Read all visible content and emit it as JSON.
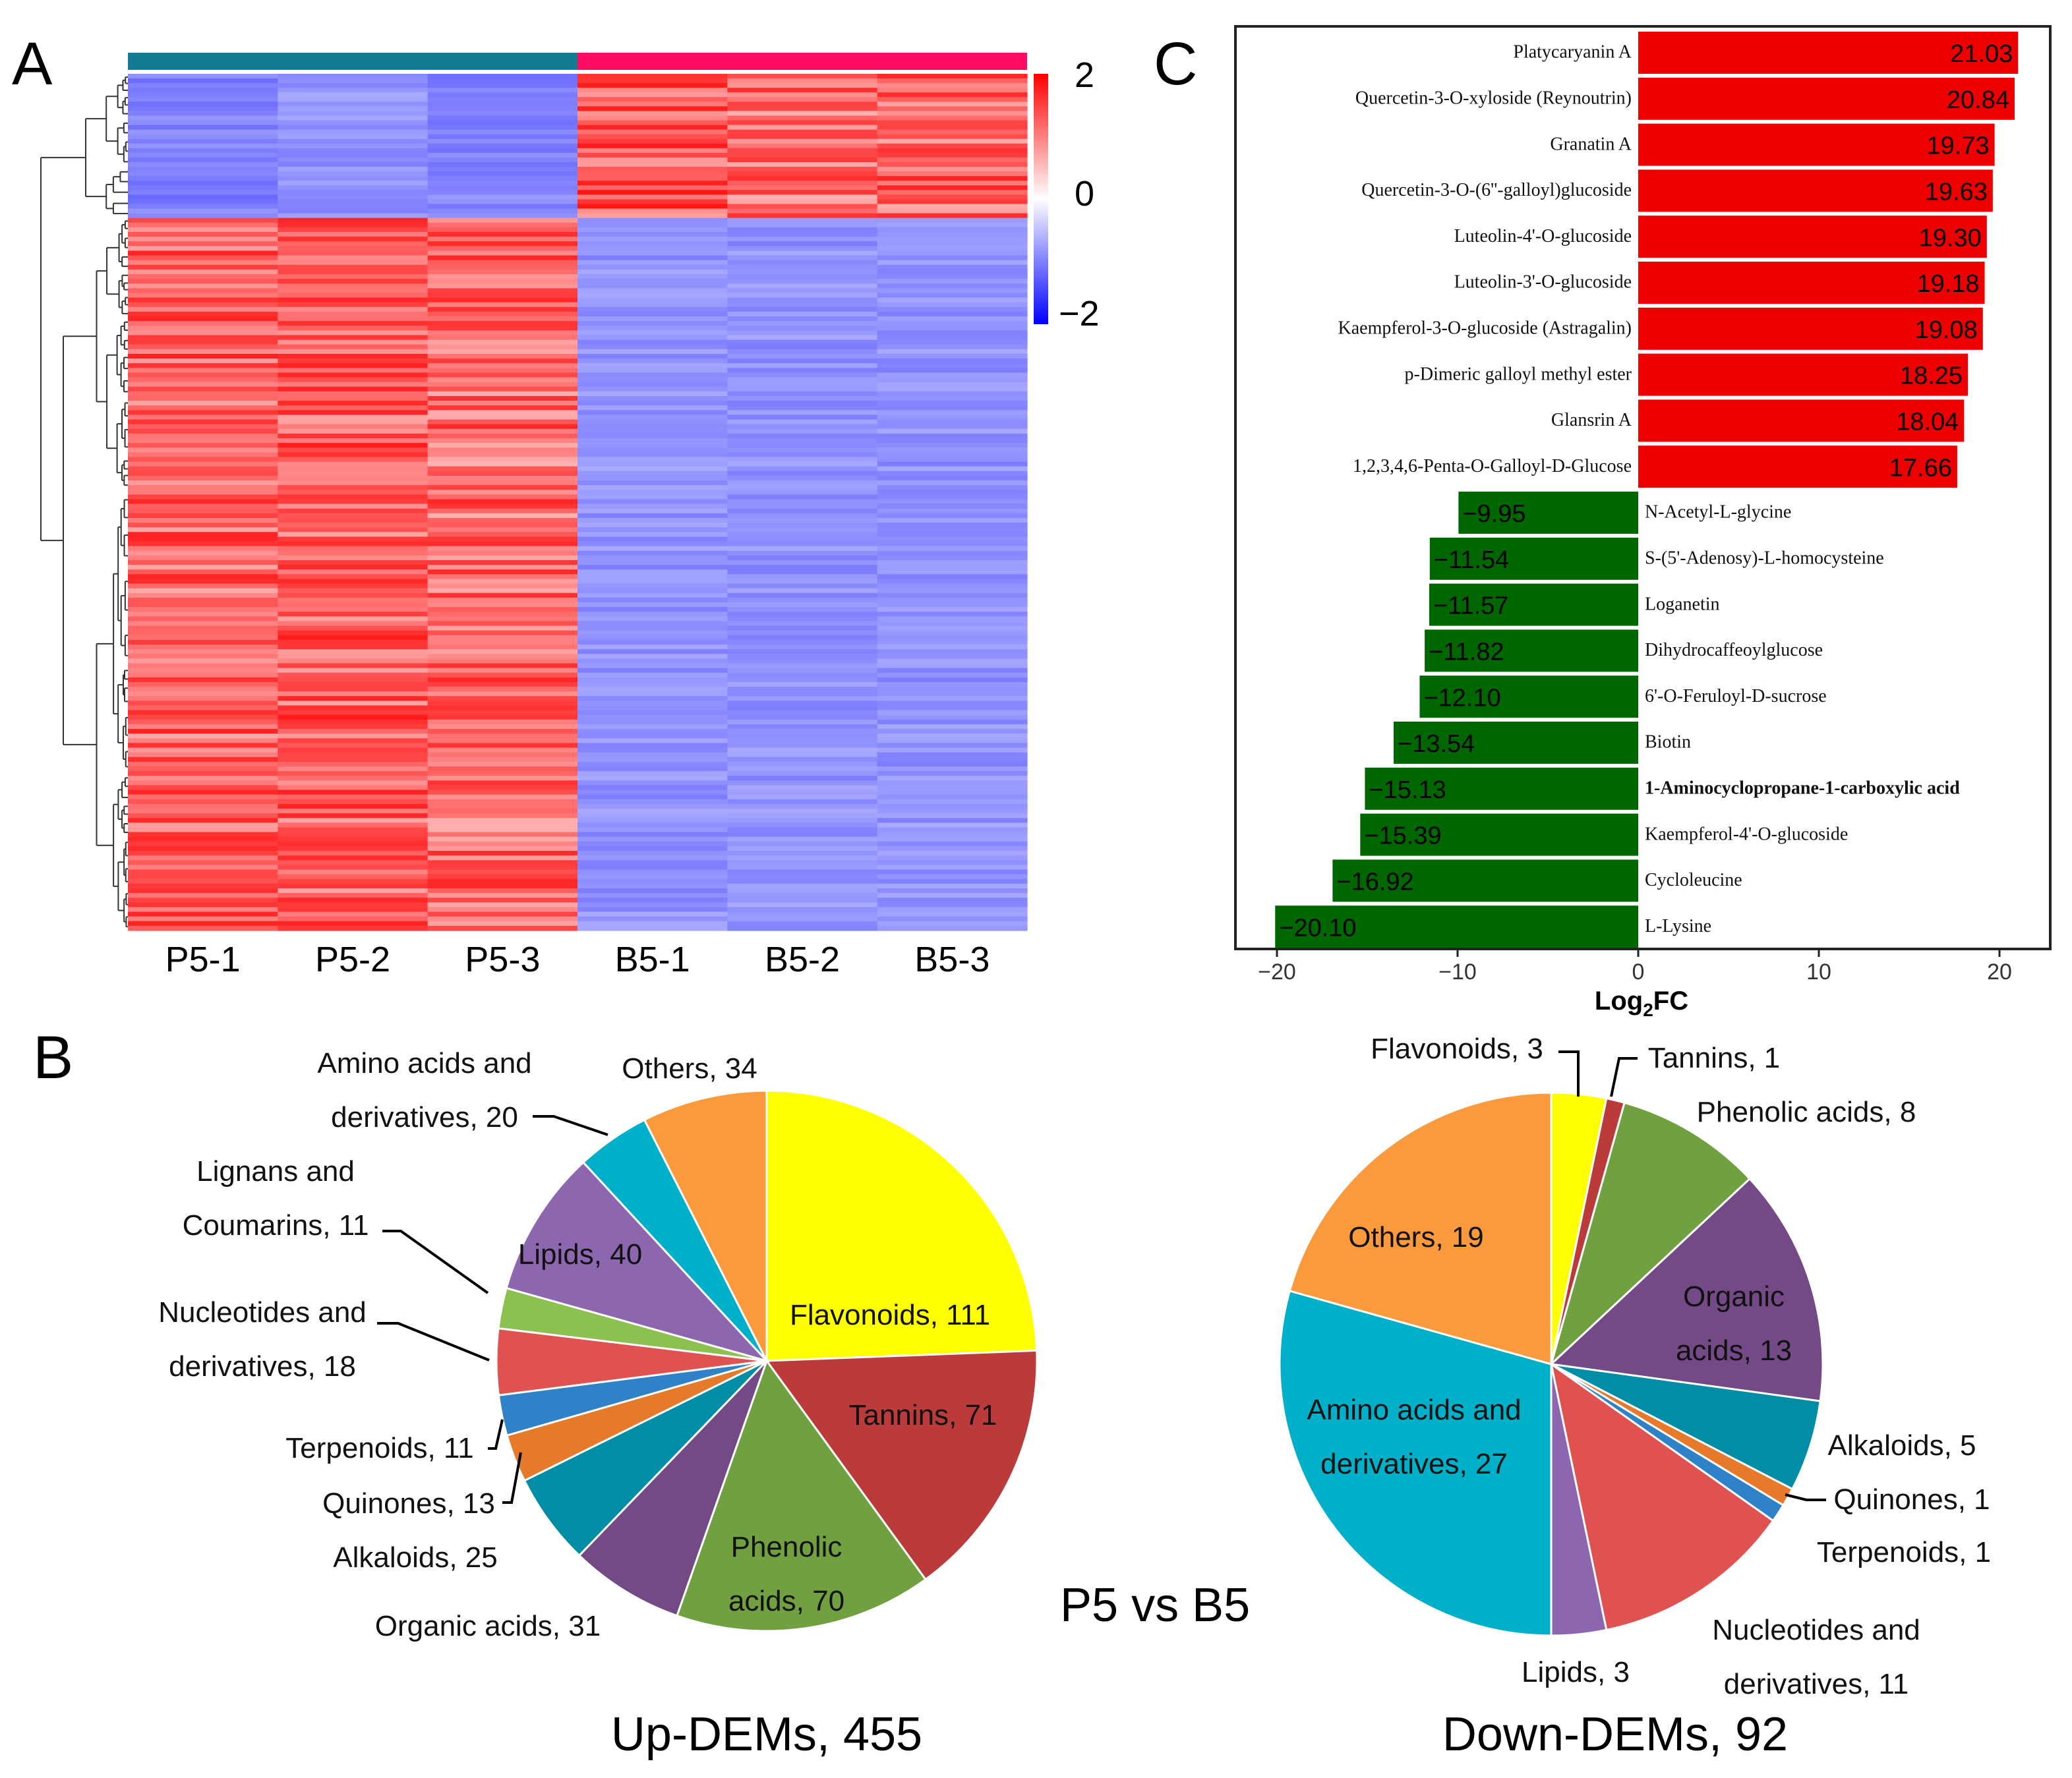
{
  "panels": {
    "a": "A",
    "b": "B",
    "c": "C"
  },
  "chart_data": [
    {
      "type": "heatmap",
      "panel": "A",
      "columns": [
        "P5-1",
        "P5-2",
        "P5-3",
        "B5-1",
        "B5-2",
        "B5-3"
      ],
      "group_colors": [
        "#157a94",
        "#ff0a62"
      ],
      "colorscale": {
        "min": -2,
        "mid": 0,
        "max": 2,
        "ticks": [
          "2",
          "0",
          "−2"
        ],
        "colors": [
          "#0000ff",
          "#ffffff",
          "#ff0000"
        ]
      },
      "row_clusters": [
        {
          "name": "up-in-B5",
          "rows": 92,
          "P5-1": -1.0,
          "P5-2": -0.85,
          "P5-3": -0.95,
          "B5-1": 1.3,
          "B5-2": 1.15,
          "B5-3": 1.2
        },
        {
          "name": "up-in-P5",
          "rows": 455,
          "P5-1": 1.2,
          "P5-2": 1.25,
          "P5-3": 1.15,
          "B5-1": -0.85,
          "B5-2": -0.85,
          "B5-3": -0.85
        }
      ]
    },
    {
      "type": "bar",
      "orientation": "horizontal",
      "panel": "C",
      "xlabel_main": "Log",
      "xlabel_sub": "2",
      "xlabel_tail": "FC",
      "xlim": [
        -20.5,
        21.5
      ],
      "xticks": [
        -20,
        -10,
        0,
        10,
        20
      ],
      "xtick_labels": [
        "−20",
        "−10",
        "0",
        "10",
        "20"
      ],
      "colors": {
        "up": "#ee0000",
        "down": "#006600"
      },
      "items": [
        {
          "name": "Platycaryanin A",
          "value": 21.03,
          "label": "21.03"
        },
        {
          "name": "Quercetin-3-O-xyloside (Reynoutrin)",
          "value": 20.84,
          "label": "20.84"
        },
        {
          "name": "Granatin A",
          "value": 19.73,
          "label": "19.73"
        },
        {
          "name": "Quercetin-3-O-(6''-galloyl)glucoside",
          "value": 19.63,
          "label": "19.63"
        },
        {
          "name": "Luteolin-4'-O-glucoside",
          "value": 19.3,
          "label": "19.30"
        },
        {
          "name": "Luteolin-3'-O-glucoside",
          "value": 19.18,
          "label": "19.18"
        },
        {
          "name": "Kaempferol-3-O-glucoside (Astragalin)",
          "value": 19.08,
          "label": "19.08"
        },
        {
          "name": "p-Dimeric galloyl methyl ester",
          "value": 18.25,
          "label": "18.25"
        },
        {
          "name": "Glansrin A",
          "value": 18.04,
          "label": "18.04"
        },
        {
          "name": "1,2,3,4,6-Penta-O-Galloyl-D-Glucose",
          "value": 17.66,
          "label": "17.66"
        },
        {
          "name": "N-Acetyl-L-glycine",
          "value": -9.95,
          "label": "−9.95"
        },
        {
          "name": "S-(5'-Adenosy)-L-homocysteine",
          "value": -11.54,
          "label": "−11.54"
        },
        {
          "name": "Loganetin",
          "value": -11.57,
          "label": "−11.57"
        },
        {
          "name": "Dihydrocaffeoylglucose",
          "value": -11.82,
          "label": "−11.82"
        },
        {
          "name": "6'-O-Feruloyl-D-sucrose",
          "value": -12.1,
          "label": "−12.10"
        },
        {
          "name": "Biotin",
          "value": -13.54,
          "label": "−13.54"
        },
        {
          "name": "1-Aminocyclopropane-1-carboxylic acid",
          "value": -15.13,
          "label": "−15.13",
          "bold": true
        },
        {
          "name": "Kaempferol-4'-O-glucoside",
          "value": -15.39,
          "label": "−15.39"
        },
        {
          "name": "Cycloleucine",
          "value": -16.92,
          "label": "−16.92"
        },
        {
          "name": "L-Lysine",
          "value": -20.1,
          "label": "−20.10"
        }
      ]
    },
    {
      "type": "pie",
      "panel": "B",
      "title": "Up-DEMs, 455",
      "slices": [
        {
          "name": "Flavonoids",
          "value": 111,
          "color": "#ffff00",
          "label": [
            "Flavonoids, 111"
          ]
        },
        {
          "name": "Tannins",
          "value": 71,
          "color": "#bb3b3b",
          "label": [
            "Tannins, 71"
          ]
        },
        {
          "name": "Phenolic acids",
          "value": 70,
          "color": "#70a040",
          "label": [
            "Phenolic",
            "acids, 70"
          ]
        },
        {
          "name": "Organic acids",
          "value": 31,
          "color": "#734a86",
          "label": [
            "Organic acids, 31"
          ]
        },
        {
          "name": "Alkaloids",
          "value": 25,
          "color": "#008da5",
          "label": [
            "Alkaloids, 25"
          ]
        },
        {
          "name": "Quinones",
          "value": 13,
          "color": "#e7792b",
          "label": [
            "Quinones, 13"
          ]
        },
        {
          "name": "Terpenoids",
          "value": 11,
          "color": "#2f82c8",
          "label": [
            "Terpenoids, 11"
          ]
        },
        {
          "name": "Nucleotides and derivatives",
          "value": 18,
          "color": "#e05252",
          "label": [
            "Nucleotides and",
            "derivatives, 18"
          ]
        },
        {
          "name": "Lignans and Coumarins",
          "value": 11,
          "color": "#8cc151",
          "label": [
            "Lignans and",
            "Coumarins, 11"
          ]
        },
        {
          "name": "Lipids",
          "value": 40,
          "color": "#8d66b0",
          "label": [
            "Lipids, 40"
          ]
        },
        {
          "name": "Amino acids and derivatives",
          "value": 20,
          "color": "#00b0c8",
          "label": [
            "Amino acids and",
            "derivatives, 20"
          ]
        },
        {
          "name": "Others",
          "value": 34,
          "color": "#fb9a3c",
          "label": [
            "Others, 34"
          ]
        }
      ]
    },
    {
      "type": "pie",
      "panel": "B",
      "title": "Down-DEMs, 92",
      "slices": [
        {
          "name": "Flavonoids",
          "value": 3,
          "color": "#ffff00",
          "label": [
            "Flavonoids, 3"
          ]
        },
        {
          "name": "Tannins",
          "value": 1,
          "color": "#bb3b3b",
          "label": [
            "Tannins, 1"
          ]
        },
        {
          "name": "Phenolic acids",
          "value": 8,
          "color": "#70a040",
          "label": [
            "Phenolic acids, 8"
          ]
        },
        {
          "name": "Organic acids",
          "value": 13,
          "color": "#734a86",
          "label": [
            "Organic",
            "acids, 13"
          ]
        },
        {
          "name": "Alkaloids",
          "value": 5,
          "color": "#008da5",
          "label": [
            "Alkaloids, 5"
          ]
        },
        {
          "name": "Quinones",
          "value": 1,
          "color": "#e7792b",
          "label": [
            "Quinones, 1"
          ]
        },
        {
          "name": "Terpenoids",
          "value": 1,
          "color": "#2f82c8",
          "label": [
            "Terpenoids, 1"
          ]
        },
        {
          "name": "Nucleotides and derivatives",
          "value": 11,
          "color": "#e05252",
          "label": [
            "Nucleotides and",
            "derivatives, 11"
          ]
        },
        {
          "name": "Lipids",
          "value": 3,
          "color": "#8d66b0",
          "label": [
            "Lipids, 3"
          ]
        },
        {
          "name": "Amino acids and derivatives",
          "value": 27,
          "color": "#00b0c8",
          "label": [
            "Amino acids and",
            "derivatives, 27"
          ]
        },
        {
          "name": "Others",
          "value": 19,
          "color": "#fb9a3c",
          "label": [
            "Others, 19"
          ]
        }
      ]
    }
  ],
  "comparison_label": "P5 vs B5"
}
